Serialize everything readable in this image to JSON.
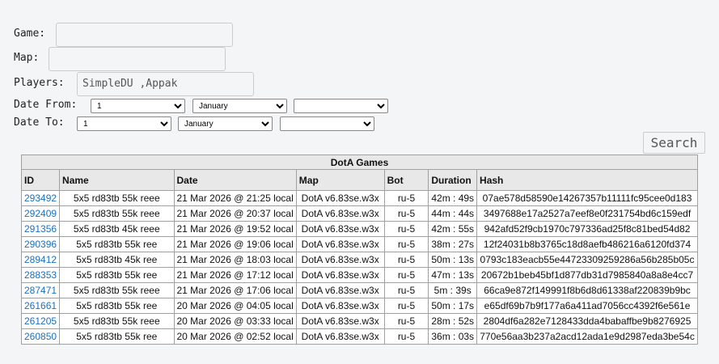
{
  "form": {
    "game_label": "Game:",
    "map_label": "Map:",
    "players_label": "Players:",
    "players_value": "SimpleDU ,Appak",
    "date_from_label": "Date From:",
    "date_from_day": "1",
    "date_from_month": "January",
    "date_to_label": "Date To:",
    "date_to_day": "1",
    "date_to_month": "January",
    "search": "Search"
  },
  "table": {
    "title": "DotA Games",
    "columns": [
      "ID",
      "Name",
      "Date",
      "Map",
      "Bot",
      "Duration",
      "Hash"
    ],
    "rows": [
      [
        "293492",
        "5x5 rd83tb 55k reee",
        "21 Mar 2026 @ 21:25 local",
        "DotA v6.83se.w3x",
        "ru-5",
        "42m : 49s",
        "07ae578d58590e14267357b11111fc95cee0d183"
      ],
      [
        "292409",
        "5x5 rd83tb 55k reee",
        "21 Mar 2026 @ 20:37 local",
        "DotA v6.83se.w3x",
        "ru-5",
        "44m : 44s",
        "3497688e17a2527a7eef8e0f231754bd6c159edf"
      ],
      [
        "291356",
        "5x5 rd83tb 45k reee",
        "21 Mar 2026 @ 19:52 local",
        "DotA v6.83se.w3x",
        "ru-5",
        "42m : 55s",
        "942afd52f9cb1970c797336ad25f8c81bed54d82"
      ],
      [
        "290396",
        "5x5 rd83tb 55k ree",
        "21 Mar 2026 @ 19:06 local",
        "DotA v6.83se.w3x",
        "ru-5",
        "38m : 27s",
        "12f24031b8b3765c18d8aefb486216a6120fd374"
      ],
      [
        "289412",
        "5x5 rd83tb 45k ree",
        "21 Mar 2026 @ 18:03 local",
        "DotA v6.83se.w3x",
        "ru-5",
        "50m : 13s",
        "0793c183eacb55e44723309259286a56b285b05c"
      ],
      [
        "288353",
        "5x5 rd83tb 55k ree",
        "21 Mar 2026 @ 17:12 local",
        "DotA v6.83se.w3x",
        "ru-5",
        "47m : 13s",
        "20672b1beb45bf1d877db31d7985840a8a8e4cc7"
      ],
      [
        "287471",
        "5x5 rd83tb 55k reee",
        "21 Mar 2026 @ 17:06 local",
        "DotA v6.83se.w3x",
        "ru-5",
        "5m : 39s",
        "66ca9e872f149991f8b6d8d61338af220839b9bc"
      ],
      [
        "261661",
        "5x5 rd83tb 55k ree",
        "20 Mar 2026 @ 04:05 local",
        "DotA v6.83se.w3x",
        "ru-5",
        "50m : 17s",
        "e65df69b7b9f177a6a411ad7056cc4392f6e561e"
      ],
      [
        "261205",
        "5x5 rd83tb 55k reee",
        "20 Mar 2026 @ 03:33 local",
        "DotA v6.83se.w3x",
        "ru-5",
        "28m : 52s",
        "2804df6a282e7128433dda4babaffbe9b8276925"
      ],
      [
        "260850",
        "5x5 rd83tb 55k ree",
        "20 Mar 2026 @ 02:52 local",
        "DotA v6.83se.w3x",
        "ru-5",
        "36m : 03s",
        "770e56aa3b237a2acd12ada1e9d2987eda3be54c"
      ]
    ]
  }
}
